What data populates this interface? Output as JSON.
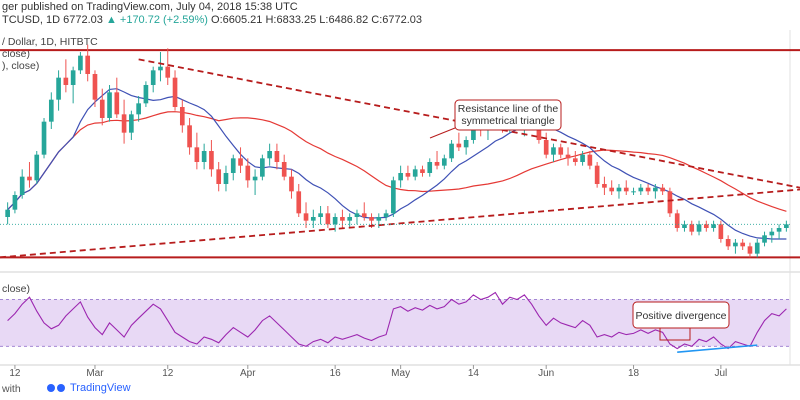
{
  "header": {
    "publish_line": "ger published on TradingView.com, July 04, 2018 15:38 UTC",
    "symbol": "TCUSD, 1D",
    "ohlc_text": "6772.03",
    "change_text": "▲ +170.72 (+2.59%)",
    "ohlc_detail": "O:6605.21 H:6833.25 L:6486.82 C:6772.03"
  },
  "legend": {
    "line1": "/ Dollar, 1D, HITBTC",
    "line2": "close)",
    "line3": "), close)",
    "rsi": "close)"
  },
  "footer": {
    "with_text": "with",
    "brand": "TradingView"
  },
  "colors": {
    "bull": "#26a69a",
    "bear": "#ef5350",
    "ma_fast": "#3f51b5",
    "ma_slow": "#e53935",
    "resistance": "#b71c1c",
    "rsi_line": "#9c27b0",
    "rsi_band": "#e8d9f5",
    "divergence": "#2196f3"
  },
  "chart_data": [
    {
      "type": "candlestick",
      "title": "",
      "x_ticks": [
        "12",
        "Mar",
        "12",
        "Apr",
        "16",
        "May",
        "14",
        "Jun",
        "18",
        "Jul"
      ],
      "annotations": [
        {
          "text": "Resistance line of the symmetrical triangle"
        }
      ],
      "series": [
        {
          "name": "close",
          "color": "#3f51b5"
        },
        {
          "name": "close",
          "color": "#e53935"
        }
      ],
      "ylim": [
        5400,
        12000
      ],
      "lines": [
        {
          "label": "horizontal-top",
          "y": [
            11450,
            11450
          ]
        },
        {
          "label": "horizontal-bottom",
          "y": [
            5800,
            5800
          ]
        },
        {
          "label": "triangle-resistance",
          "y": [
            11200,
            7700
          ]
        },
        {
          "label": "triangle-support",
          "y": [
            5800,
            7650
          ]
        }
      ],
      "candles": [
        [
          6.9,
          7.3,
          6.7,
          7.1
        ],
        [
          7.1,
          7.6,
          7.0,
          7.5
        ],
        [
          7.5,
          8.2,
          7.4,
          8.0
        ],
        [
          8.0,
          8.4,
          7.7,
          7.9
        ],
        [
          7.9,
          8.7,
          7.8,
          8.6
        ],
        [
          8.6,
          9.6,
          8.5,
          9.5
        ],
        [
          9.5,
          10.3,
          9.3,
          10.1
        ],
        [
          10.1,
          10.9,
          9.8,
          10.7
        ],
        [
          10.7,
          11.2,
          10.3,
          10.5
        ],
        [
          10.5,
          11.0,
          10.0,
          10.9
        ],
        [
          10.9,
          11.4,
          10.8,
          11.3
        ],
        [
          11.3,
          11.6,
          10.6,
          10.8
        ],
        [
          10.8,
          10.9,
          9.9,
          10.1
        ],
        [
          10.1,
          10.4,
          9.4,
          9.6
        ],
        [
          9.6,
          10.5,
          9.5,
          10.3
        ],
        [
          10.3,
          10.7,
          9.6,
          9.7
        ],
        [
          9.7,
          10.1,
          8.9,
          9.2
        ],
        [
          9.2,
          9.8,
          9.0,
          9.7
        ],
        [
          9.7,
          10.2,
          9.5,
          10.0
        ],
        [
          10.0,
          10.6,
          9.9,
          10.5
        ],
        [
          10.5,
          11.0,
          10.3,
          10.9
        ],
        [
          10.9,
          11.4,
          10.6,
          11.0
        ],
        [
          11.0,
          11.5,
          10.5,
          10.7
        ],
        [
          10.7,
          10.9,
          9.8,
          9.9
        ],
        [
          9.9,
          10.1,
          9.2,
          9.4
        ],
        [
          9.4,
          9.6,
          8.6,
          8.8
        ],
        [
          8.8,
          9.2,
          8.2,
          8.4
        ],
        [
          8.4,
          8.9,
          8.2,
          8.7
        ],
        [
          8.7,
          9.0,
          8.0,
          8.2
        ],
        [
          8.2,
          8.4,
          7.6,
          7.8
        ],
        [
          7.8,
          8.3,
          7.6,
          8.1
        ],
        [
          8.1,
          8.6,
          7.9,
          8.5
        ],
        [
          8.5,
          8.8,
          8.1,
          8.3
        ],
        [
          8.3,
          8.5,
          7.7,
          7.9
        ],
        [
          7.9,
          8.2,
          7.5,
          8.0
        ],
        [
          8.0,
          8.6,
          7.9,
          8.5
        ],
        [
          8.5,
          8.9,
          8.3,
          8.7
        ],
        [
          8.7,
          8.9,
          8.2,
          8.4
        ],
        [
          8.4,
          8.6,
          7.9,
          8.0
        ],
        [
          8.0,
          8.2,
          7.4,
          7.6
        ],
        [
          7.6,
          7.8,
          6.9,
          7.0
        ],
        [
          7.0,
          7.3,
          6.6,
          6.8
        ],
        [
          6.8,
          7.1,
          6.6,
          6.9
        ],
        [
          6.9,
          7.2,
          6.7,
          7.0
        ],
        [
          7.0,
          7.2,
          6.6,
          6.7
        ],
        [
          6.7,
          7.0,
          6.5,
          6.9
        ],
        [
          6.9,
          7.1,
          6.6,
          6.8
        ],
        [
          6.8,
          7.0,
          6.6,
          6.9
        ],
        [
          6.9,
          7.1,
          6.7,
          7.0
        ],
        [
          7.0,
          7.3,
          6.8,
          6.9
        ],
        [
          6.9,
          7.0,
          6.6,
          6.8
        ],
        [
          6.8,
          7.0,
          6.6,
          6.9
        ],
        [
          6.9,
          7.1,
          6.8,
          7.0
        ],
        [
          7.0,
          8.0,
          6.9,
          7.9
        ],
        [
          7.9,
          8.3,
          7.7,
          8.1
        ],
        [
          8.1,
          8.3,
          7.9,
          8.0
        ],
        [
          8.0,
          8.3,
          7.9,
          8.2
        ],
        [
          8.2,
          8.3,
          8.0,
          8.1
        ],
        [
          8.1,
          8.5,
          8.0,
          8.4
        ],
        [
          8.4,
          8.7,
          8.2,
          8.3
        ],
        [
          8.3,
          8.6,
          8.2,
          8.5
        ],
        [
          8.5,
          9.0,
          8.4,
          8.9
        ],
        [
          8.9,
          9.2,
          8.7,
          8.8
        ],
        [
          8.8,
          9.1,
          8.6,
          9.0
        ],
        [
          9.0,
          9.5,
          8.9,
          9.4
        ],
        [
          9.4,
          9.7,
          9.1,
          9.3
        ],
        [
          9.3,
          9.6,
          9.0,
          9.5
        ],
        [
          9.5,
          9.9,
          9.3,
          9.6
        ],
        [
          9.6,
          9.8,
          9.2,
          9.3
        ],
        [
          9.3,
          9.7,
          9.2,
          9.6
        ],
        [
          9.6,
          9.9,
          9.4,
          9.5
        ],
        [
          9.5,
          9.8,
          9.1,
          9.7
        ],
        [
          9.7,
          9.9,
          9.3,
          9.4
        ],
        [
          9.4,
          9.5,
          8.9,
          9.0
        ],
        [
          9.0,
          9.2,
          8.5,
          8.6
        ],
        [
          8.6,
          8.9,
          8.4,
          8.8
        ],
        [
          8.8,
          8.9,
          8.5,
          8.6
        ],
        [
          8.6,
          8.8,
          8.3,
          8.5
        ],
        [
          8.5,
          8.7,
          8.3,
          8.4
        ],
        [
          8.4,
          8.7,
          8.3,
          8.6
        ],
        [
          8.6,
          8.7,
          8.2,
          8.3
        ],
        [
          8.3,
          8.4,
          7.7,
          7.8
        ],
        [
          7.8,
          8.0,
          7.5,
          7.7
        ],
        [
          7.7,
          7.9,
          7.5,
          7.6
        ],
        [
          7.6,
          7.8,
          7.4,
          7.7
        ],
        [
          7.7,
          7.9,
          7.5,
          7.6
        ],
        [
          7.6,
          7.7,
          7.5,
          7.6
        ],
        [
          7.6,
          7.8,
          7.5,
          7.7
        ],
        [
          7.7,
          7.8,
          7.5,
          7.6
        ],
        [
          7.6,
          7.8,
          7.4,
          7.7
        ],
        [
          7.7,
          7.8,
          7.5,
          7.6
        ],
        [
          7.6,
          7.7,
          6.9,
          7.0
        ],
        [
          7.0,
          7.1,
          6.5,
          6.6
        ],
        [
          6.6,
          6.8,
          6.5,
          6.7
        ],
        [
          6.7,
          6.8,
          6.4,
          6.5
        ],
        [
          6.5,
          6.8,
          6.4,
          6.7
        ],
        [
          6.7,
          6.8,
          6.5,
          6.6
        ],
        [
          6.6,
          6.8,
          6.5,
          6.7
        ],
        [
          6.7,
          6.8,
          6.2,
          6.3
        ],
        [
          6.3,
          6.4,
          6.0,
          6.1
        ],
        [
          6.1,
          6.3,
          5.9,
          6.2
        ],
        [
          6.2,
          6.3,
          6.0,
          6.1
        ],
        [
          6.1,
          6.2,
          5.8,
          5.9
        ],
        [
          5.9,
          6.3,
          5.8,
          6.2
        ],
        [
          6.2,
          6.5,
          6.1,
          6.4
        ],
        [
          6.4,
          6.6,
          6.2,
          6.5
        ],
        [
          6.5,
          6.7,
          6.3,
          6.6
        ],
        [
          6.6,
          6.8,
          6.5,
          6.7
        ]
      ]
    },
    {
      "type": "line",
      "title": "",
      "annotations": [
        {
          "text": "Positive divergence"
        }
      ],
      "ylim": [
        20,
        85
      ],
      "levels": [
        70,
        30
      ],
      "values": [
        52,
        58,
        66,
        72,
        60,
        50,
        45,
        48,
        56,
        62,
        68,
        55,
        46,
        40,
        50,
        44,
        38,
        48,
        54,
        60,
        66,
        62,
        52,
        42,
        38,
        34,
        32,
        38,
        36,
        33,
        40,
        46,
        42,
        38,
        44,
        52,
        56,
        50,
        44,
        38,
        32,
        30,
        34,
        36,
        33,
        38,
        36,
        38,
        40,
        37,
        35,
        38,
        40,
        62,
        64,
        60,
        63,
        61,
        65,
        62,
        64,
        70,
        66,
        68,
        74,
        70,
        72,
        76,
        66,
        72,
        70,
        74,
        66,
        56,
        48,
        54,
        50,
        48,
        46,
        52,
        48,
        38,
        40,
        38,
        42,
        40,
        41,
        44,
        41,
        44,
        42,
        32,
        28,
        32,
        30,
        36,
        34,
        38,
        32,
        28,
        34,
        32,
        30,
        42,
        52,
        58,
        56,
        62
      ]
    }
  ]
}
